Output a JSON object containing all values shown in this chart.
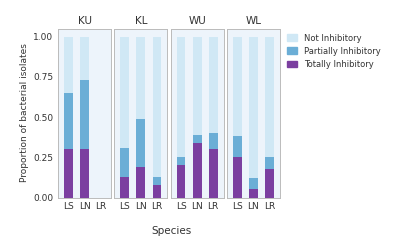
{
  "facets": [
    "KU",
    "KL",
    "WU",
    "WL"
  ],
  "species": [
    "LS",
    "LN",
    "LR"
  ],
  "totally_inhibitory": {
    "KU": [
      0.3,
      0.3,
      0.0
    ],
    "KL": [
      0.13,
      0.19,
      0.08
    ],
    "WU": [
      0.2,
      0.34,
      0.3
    ],
    "WL": [
      0.25,
      0.05,
      0.18
    ]
  },
  "partially_inhibitory": {
    "KU": [
      0.35,
      0.43,
      0.0
    ],
    "KL": [
      0.18,
      0.3,
      0.05
    ],
    "WU": [
      0.05,
      0.05,
      0.1
    ],
    "WL": [
      0.13,
      0.07,
      0.07
    ]
  },
  "not_inhibitory": {
    "KU": [
      0.35,
      0.27,
      0.0
    ],
    "KL": [
      0.69,
      0.51,
      0.87
    ],
    "WU": [
      0.75,
      0.61,
      0.6
    ],
    "WL": [
      0.62,
      0.88,
      0.75
    ]
  },
  "color_totally": "#7b3fa0",
  "color_partially": "#6baed6",
  "color_not": "#d0e8f5",
  "ylabel": "Proportion of bacterial isolates",
  "xlabel": "Species",
  "bar_width": 0.55,
  "panel_bg": "#edf4fb"
}
